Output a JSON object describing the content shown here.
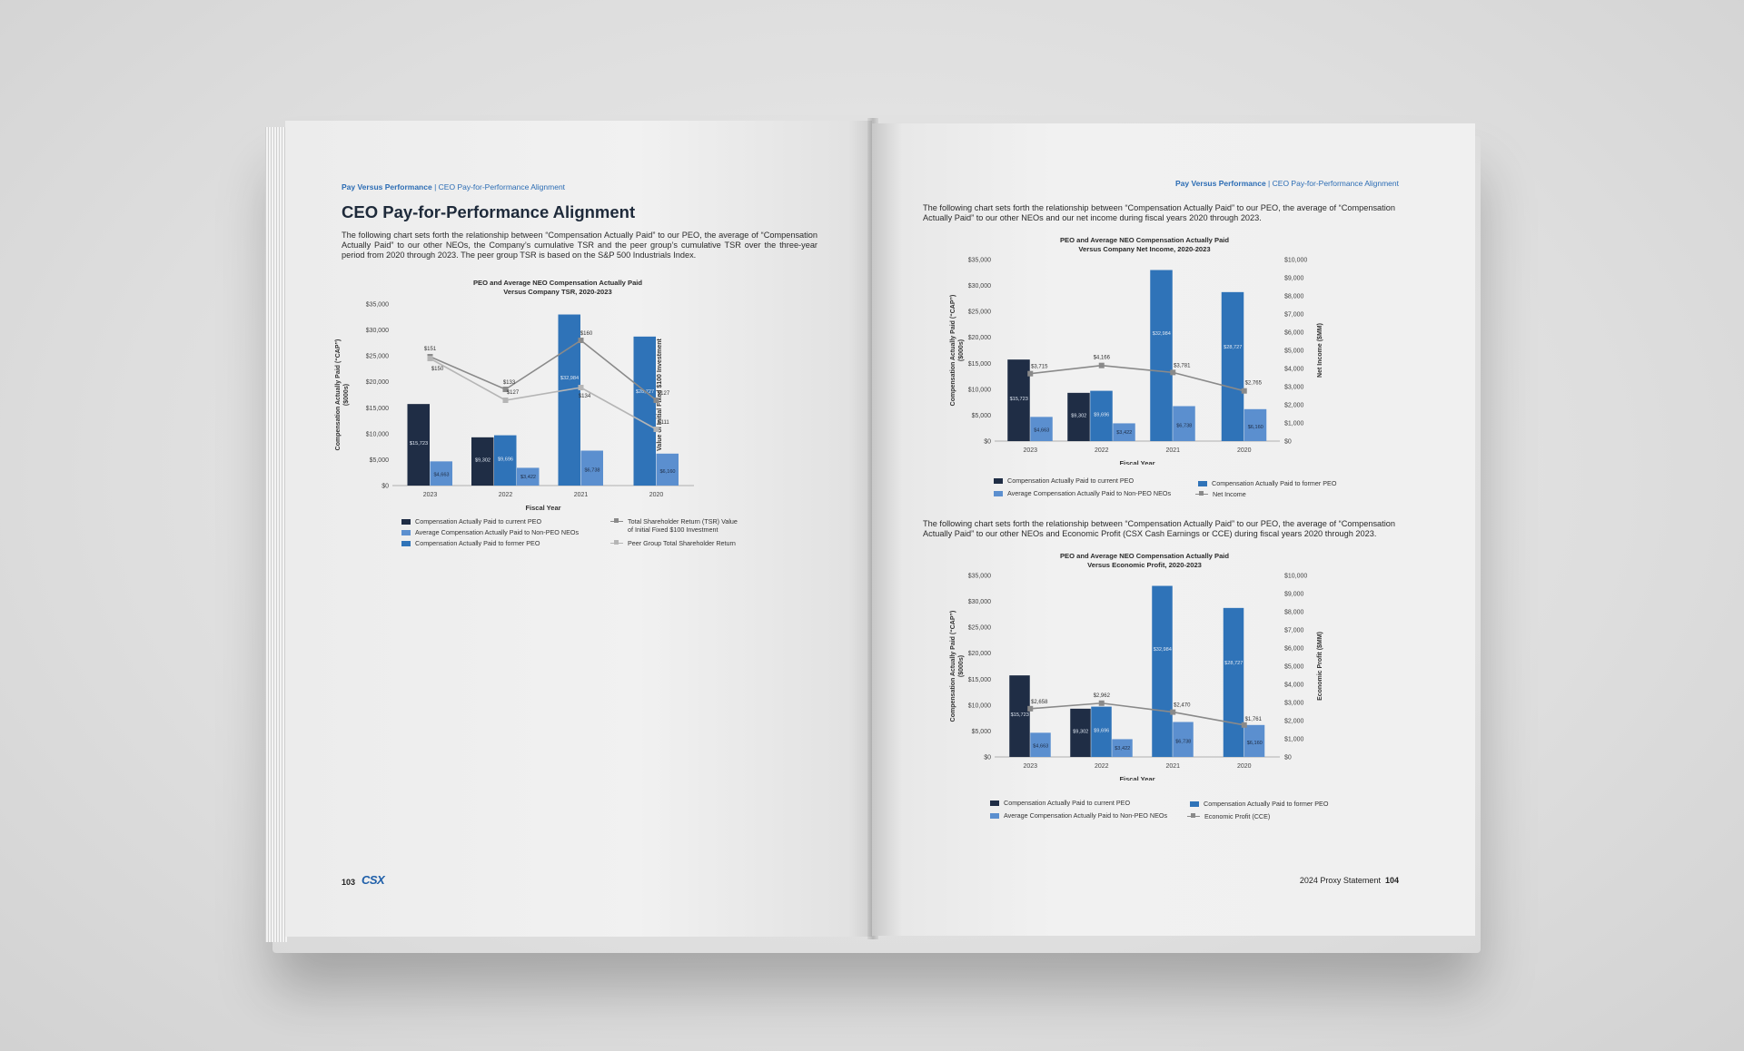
{
  "left_page": {
    "running_head": {
      "section": "Pay Versus Performance",
      "separator": "|",
      "subsection": "CEO Pay-for-Performance Alignment"
    },
    "heading": "CEO Pay-for-Performance Alignment",
    "paragraph": "The following chart sets forth the relationship between “Compensation Actually Paid” to our PEO, the average of “Compensation Actually Paid” to our other NEOs, the Company’s cumulative TSR and the peer group’s cumulative TSR over the three-year period from 2020 through 2023. The peer group TSR is based on the S&P 500 Industrials Index.",
    "page_number": "103",
    "logo": "CSX",
    "legend": [
      "Compensation Actually Paid to current PEO",
      "Average Compensation Actually Paid to Non-PEO NEOs",
      "Compensation Actually Paid to former PEO",
      "Total Shareholder Return (TSR) Value of Initial Fixed $100 Investment",
      "Peer Group Total Shareholder Return"
    ]
  },
  "right_page": {
    "running_head": {
      "section": "Pay Versus Performance",
      "separator": "|",
      "subsection": "CEO Pay-for-Performance Alignment"
    },
    "paragraph1": "The following chart sets forth the relationship between “Compensation Actually Paid” to our PEO, the average of “Compensation Actually Paid” to our other NEOs and our net income during fiscal years 2020 through 2023.",
    "paragraph2": "The following chart sets forth the relationship between “Compensation Actually Paid” to our PEO, the average of “Compensation Actually Paid” to our other NEOs and Economic Profit (CSX Cash Earnings or CCE) during fiscal years 2020 through 2023.",
    "footer_text": "2024 Proxy Statement",
    "page_number": "104",
    "legend_ni": [
      "Compensation Actually Paid to current PEO",
      "Compensation Actually Paid to former PEO",
      "Average Compensation Actually Paid to Non-PEO NEOs",
      "Net Income"
    ],
    "legend_ep": [
      "Compensation Actually Paid to current PEO",
      "Compensation Actually Paid to former PEO",
      "Average Compensation Actually Paid to Non-PEO NEOs",
      "Economic Profit (CCE)"
    ]
  },
  "colors": {
    "current_peo": "#1f2d45",
    "former_peo": "#2f73b8",
    "non_peo": "#5b8fcf",
    "line": "#8a8a8a",
    "peer_line": "#b5b5b5",
    "accent": "#2b6cb4"
  },
  "chart_data": [
    {
      "type": "bar",
      "title": "PEO and Average NEO Compensation Actually Paid",
      "subtitle": "Versus Company TSR, 2020-2023",
      "xlabel": "Fiscal Year",
      "ylabel": "Compensation Actually Paid (“CAP”) ($000s)",
      "y2label": "Total Shareholder Return (TSR) Value of Initial Fixed $100 Investment",
      "categories": [
        "2023",
        "2022",
        "2021",
        "2020"
      ],
      "ylim": [
        0,
        35000
      ],
      "yticks": [
        "$0",
        "$5,000",
        "$10,000",
        "$15,000",
        "$20,000",
        "$25,000",
        "$30,000",
        "$35,000"
      ],
      "y2lim": [
        80,
        180
      ],
      "y2ticks": [
        "$80",
        "$100",
        "$120",
        "$140",
        "$160",
        "$180"
      ],
      "series": [
        {
          "name": "Compensation Actually Paid to current PEO",
          "values": [
            15723,
            9302,
            null,
            null
          ],
          "labels": [
            "$15,723",
            "$9,302",
            "",
            ""
          ]
        },
        {
          "name": "Compensation Actually Paid to former PEO",
          "values": [
            null,
            9696,
            32984,
            28727
          ],
          "labels": [
            "",
            "$9,696",
            "$32,984",
            "$28,727"
          ]
        },
        {
          "name": "Average Compensation Actually Paid to Non-PEO NEOs",
          "values": [
            4663,
            3422,
            6738,
            6160
          ],
          "labels": [
            "$4,663",
            "$3,422",
            "$6,738",
            "$6,160"
          ]
        },
        {
          "name": "Total Shareholder Return (TSR) Value of Initial Fixed $100 Investment",
          "type": "line",
          "values": [
            151,
            133,
            160,
            127
          ],
          "labels": [
            "$151",
            "$133",
            "$160",
            "$127"
          ]
        },
        {
          "name": "Peer Group Total Shareholder Return",
          "type": "line",
          "values": [
            150,
            127,
            134,
            111
          ],
          "labels": [
            "$150",
            "$127",
            "$134",
            "$111"
          ]
        }
      ]
    },
    {
      "type": "bar",
      "title": "PEO and Average NEO Compensation Actually Paid",
      "subtitle": "Versus Company Net Income, 2020-2023",
      "xlabel": "Fiscal Year",
      "ylabel": "Compensation Actually Paid (“CAP”) ($000s)",
      "y2label": "Net Income ($MM)",
      "categories": [
        "2023",
        "2022",
        "2021",
        "2020"
      ],
      "ylim": [
        0,
        35000
      ],
      "yticks": [
        "$0",
        "$5,000",
        "$10,000",
        "$15,000",
        "$20,000",
        "$25,000",
        "$30,000",
        "$35,000"
      ],
      "y2lim": [
        0,
        10000
      ],
      "y2ticks": [
        "$0",
        "$1,000",
        "$2,000",
        "$3,000",
        "$4,000",
        "$5,000",
        "$6,000",
        "$7,000",
        "$8,000",
        "$9,000",
        "$10,000"
      ],
      "series": [
        {
          "name": "Compensation Actually Paid to current PEO",
          "values": [
            15723,
            9302,
            null,
            null
          ],
          "labels": [
            "$15,723",
            "$9,302",
            "",
            ""
          ]
        },
        {
          "name": "Compensation Actually Paid to former PEO",
          "values": [
            null,
            9696,
            32984,
            28727
          ],
          "labels": [
            "",
            "$9,696",
            "$32,984",
            "$28,727"
          ]
        },
        {
          "name": "Average Compensation Actually Paid to Non-PEO NEOs",
          "values": [
            4663,
            3422,
            6738,
            6160
          ],
          "labels": [
            "$4,663",
            "$3,422",
            "$6,738",
            "$6,160"
          ]
        },
        {
          "name": "Net Income",
          "type": "line",
          "values": [
            3715,
            4166,
            3781,
            2765
          ],
          "labels": [
            "$3,715",
            "$4,166",
            "$3,781",
            "$2,765"
          ]
        }
      ]
    },
    {
      "type": "bar",
      "title": "PEO and Average NEO Compensation Actually Paid",
      "subtitle": "Versus Economic Profit, 2020-2023",
      "xlabel": "Fiscal Year",
      "ylabel": "Compensation Actually Paid (“CAP”) ($000s)",
      "y2label": "Economic Profit ($MM)",
      "categories": [
        "2023",
        "2022",
        "2021",
        "2020"
      ],
      "ylim": [
        0,
        35000
      ],
      "yticks": [
        "$0",
        "$5,000",
        "$10,000",
        "$15,000",
        "$20,000",
        "$25,000",
        "$30,000",
        "$35,000"
      ],
      "y2lim": [
        0,
        10000
      ],
      "y2ticks": [
        "$0",
        "$1,000",
        "$2,000",
        "$3,000",
        "$4,000",
        "$5,000",
        "$6,000",
        "$7,000",
        "$8,000",
        "$9,000",
        "$10,000"
      ],
      "series": [
        {
          "name": "Compensation Actually Paid to current PEO",
          "values": [
            15723,
            9302,
            null,
            null
          ],
          "labels": [
            "$15,723",
            "$9,302",
            "",
            ""
          ]
        },
        {
          "name": "Compensation Actually Paid to former PEO",
          "values": [
            null,
            9696,
            32984,
            28727
          ],
          "labels": [
            "",
            "$9,696",
            "$32,984",
            "$28,727"
          ]
        },
        {
          "name": "Average Compensation Actually Paid to Non-PEO NEOs",
          "values": [
            4663,
            3422,
            6738,
            6160
          ],
          "labels": [
            "$4,663",
            "$3,422",
            "$6,738",
            "$6,160"
          ]
        },
        {
          "name": "Economic Profit (CCE)",
          "type": "line",
          "values": [
            2658,
            2962,
            2470,
            1761
          ],
          "labels": [
            "$2,658",
            "$2,962",
            "$2,470",
            "$1,761"
          ]
        }
      ]
    }
  ]
}
